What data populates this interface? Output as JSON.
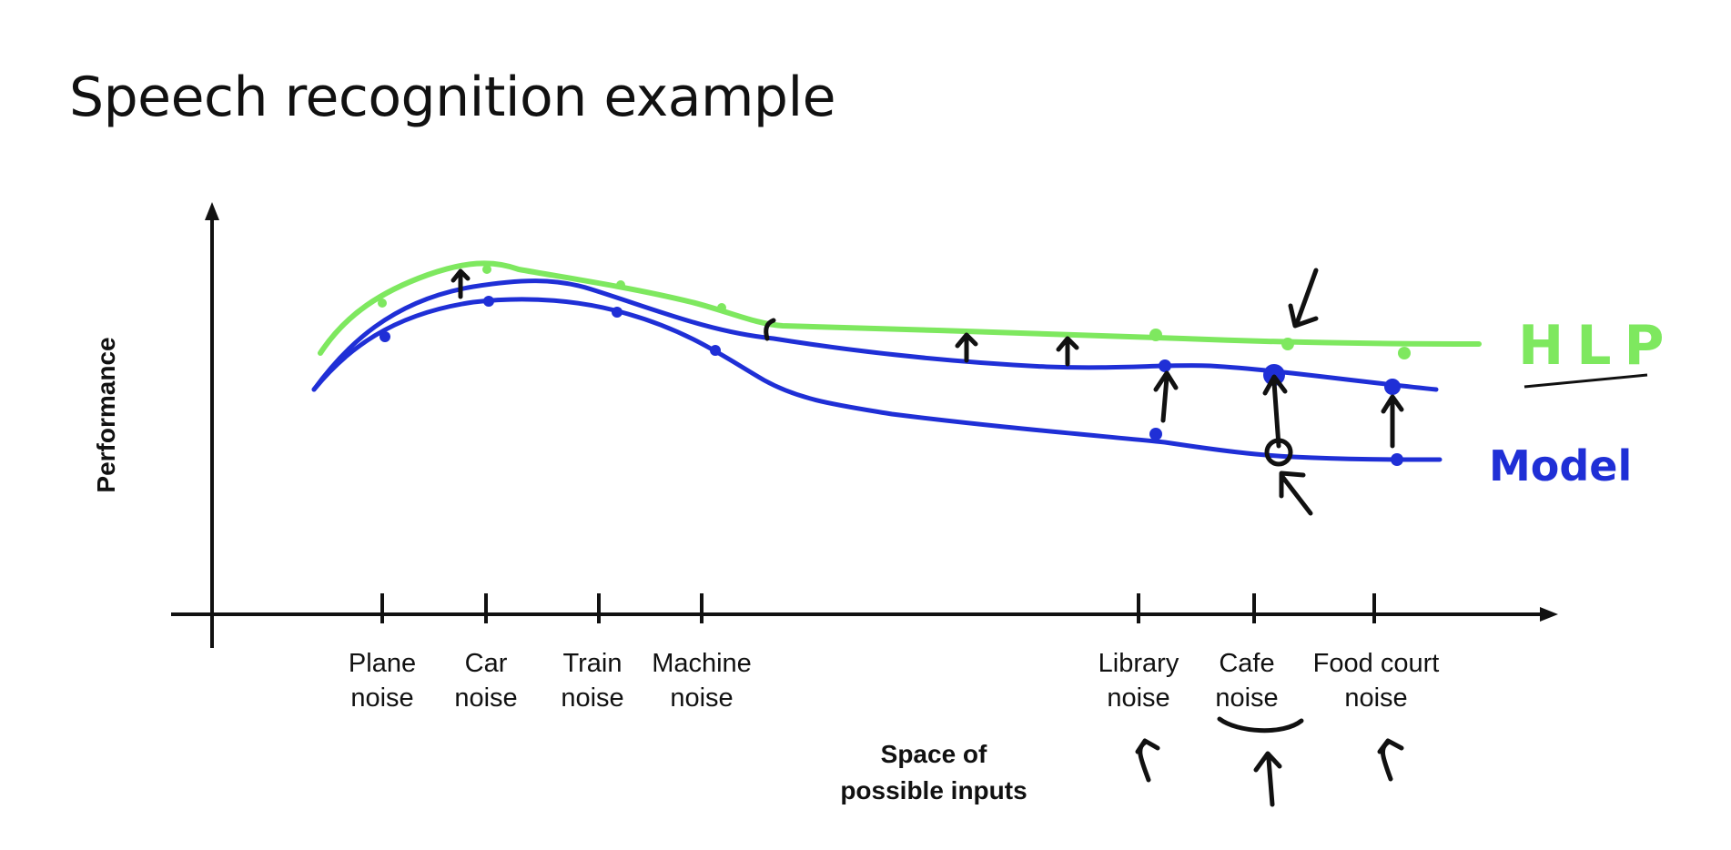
{
  "slide": {
    "title": "Speech recognition example"
  },
  "diagram": {
    "y_axis_label": "Performance",
    "x_axis_label_line1": "Space of",
    "x_axis_label_line2": "possible inputs",
    "categories": [
      {
        "line1": "Plane",
        "line2": "noise"
      },
      {
        "line1": "Car",
        "line2": "noise"
      },
      {
        "line1": "Train",
        "line2": "noise"
      },
      {
        "line1": "Machine",
        "line2": "noise"
      },
      {
        "line1": "Library",
        "line2": "noise"
      },
      {
        "line1": "Cafe",
        "line2": "noise"
      },
      {
        "line1": "Food court",
        "line2": "noise"
      }
    ],
    "curve_labels": {
      "hlp": "HLP",
      "model": "Model"
    },
    "colors": {
      "hlp": "#7ee85f",
      "model": "#1f2fd6",
      "ink": "#111111"
    }
  }
}
